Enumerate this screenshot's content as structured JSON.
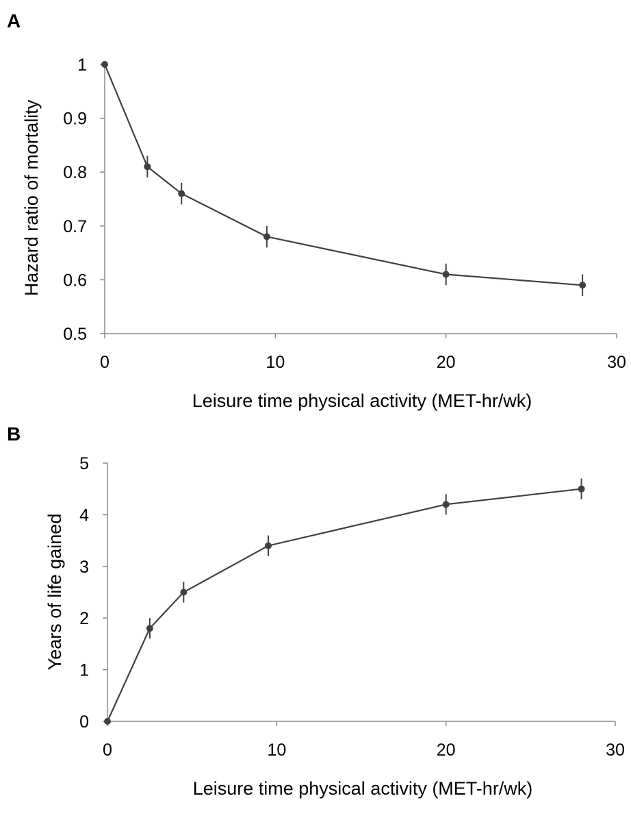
{
  "chart_data": [
    {
      "panel_label": "A",
      "type": "line",
      "xlabel": "Leisure time physical activity (MET-hr/wk)",
      "ylabel": "Hazard ratio of mortality",
      "xlim": [
        0,
        30
      ],
      "ylim": [
        0.5,
        1
      ],
      "xticks": [
        "0",
        "10",
        "20",
        "30"
      ],
      "yticks": [
        "0.5",
        "0.6",
        "0.7",
        "0.8",
        "0.9",
        "1"
      ],
      "grid": false,
      "x": [
        0,
        2.5,
        4.5,
        9.5,
        20,
        28
      ],
      "y": [
        1.0,
        0.81,
        0.76,
        0.68,
        0.61,
        0.59
      ],
      "error": [
        0,
        0.02,
        0.02,
        0.02,
        0.02,
        0.02
      ],
      "color": "#404040"
    },
    {
      "panel_label": "B",
      "type": "line",
      "xlabel": "Leisure time physical activity (MET-hr/wk)",
      "ylabel": "Years of life gained",
      "xlim": [
        0,
        30
      ],
      "ylim": [
        0,
        5
      ],
      "xticks": [
        "0",
        "10",
        "20",
        "30"
      ],
      "yticks": [
        "0",
        "1",
        "2",
        "3",
        "4",
        "5"
      ],
      "grid": false,
      "x": [
        0,
        2.5,
        4.5,
        9.5,
        20,
        28
      ],
      "y": [
        0,
        1.8,
        2.5,
        3.4,
        4.2,
        4.5
      ],
      "error": [
        0,
        0.2,
        0.2,
        0.2,
        0.2,
        0.2
      ],
      "color": "#404040"
    }
  ]
}
